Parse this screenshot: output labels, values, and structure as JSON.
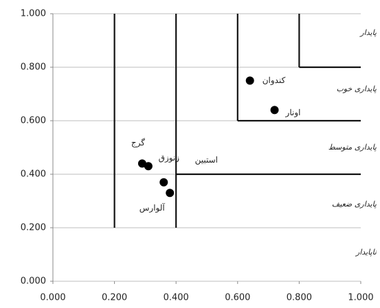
{
  "chart_data": {
    "type": "scatter",
    "xlim": [
      0,
      1
    ],
    "ylim": [
      0,
      1
    ],
    "xticks": [
      {
        "value": 0,
        "label": "0.000"
      },
      {
        "value": 0.2,
        "label": "0.200"
      },
      {
        "value": 0.4,
        "label": "0.400"
      },
      {
        "value": 0.6,
        "label": "0.600"
      },
      {
        "value": 0.8,
        "label": "0.800"
      },
      {
        "value": 1,
        "label": "1.000"
      }
    ],
    "yticks": [
      {
        "value": 0,
        "label": "0.000"
      },
      {
        "value": 0.2,
        "label": "0.200"
      },
      {
        "value": 0.4,
        "label": "0.400"
      },
      {
        "value": 0.6,
        "label": "0.600"
      },
      {
        "value": 0.8,
        "label": "0.800"
      },
      {
        "value": 1,
        "label": "1.000"
      }
    ],
    "grid": true,
    "color": "#000000",
    "points": [
      {
        "name": "کندوان",
        "x": 0.64,
        "y": 0.75
      },
      {
        "name": "اونار",
        "x": 0.72,
        "y": 0.64
      },
      {
        "name": "گرج",
        "x": 0.29,
        "y": 0.44
      },
      {
        "name": "زنوزق",
        "x": 0.31,
        "y": 0.43
      },
      {
        "name": "استبین",
        "x": 0.36,
        "y": 0.37
      },
      {
        "name": "آلوارس",
        "x": 0.38,
        "y": 0.33
      }
    ],
    "region_lines": [
      [
        0.2,
        0.2,
        0.2,
        1
      ],
      [
        0.4,
        0.2,
        0.4,
        1
      ],
      [
        0.4,
        0.4,
        1,
        0.4
      ],
      [
        0.6,
        0.6,
        0.6,
        1
      ],
      [
        0.6,
        0.6,
        1,
        0.6
      ],
      [
        0.8,
        0.8,
        0.8,
        1
      ],
      [
        0.8,
        0.8,
        1,
        0.8
      ]
    ],
    "annotations": [
      "پایدار",
      "پایداری خوب",
      "پایداری متوسط",
      "پایداری ضعیف",
      "ناپایدار"
    ]
  }
}
